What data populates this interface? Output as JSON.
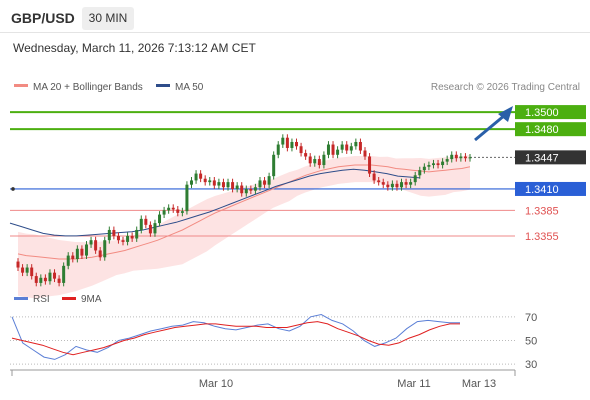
{
  "header": {
    "pair": "GBP/USD",
    "timeframe": "30 MIN",
    "datetime": "Wednesday, March 11, 2026 7:13:12 AM CET"
  },
  "legend": {
    "ma20_label": "MA 20 + Bollinger Bands",
    "ma50_label": "MA 50",
    "credit": "Research © 2026 Trading Central"
  },
  "colors": {
    "up_candle": "#2e7d32",
    "down_candle": "#c62828",
    "resistance_line": "#4caf10",
    "support_line": "#2a5fd6",
    "minor_support_line": "#ef8a8a",
    "ma20": "#f28b82",
    "bollinger_fill": "#fde3e3",
    "ma50": "#2e4d8a",
    "current_price_label": "#333333",
    "rsi_line": "#5b7fd6",
    "rsi_ma_line": "#e02020",
    "arrow": "#2a5fa8"
  },
  "chart_data": [
    {
      "type": "candlestick",
      "instrument": "GBP/USD",
      "timeframe": "30 MIN",
      "ylim": [
        1.328,
        1.352
      ],
      "x_ticks": [
        "Mar 10",
        "Mar 11",
        "Mar 13"
      ],
      "overlays": [
        "MA 20 + Bollinger Bands",
        "MA 50"
      ],
      "levels": [
        {
          "value": 1.35,
          "label": "1.3500",
          "kind": "resistance"
        },
        {
          "value": 1.348,
          "label": "1.3480",
          "kind": "resistance"
        },
        {
          "value": 1.3447,
          "label": "1.3447",
          "kind": "current"
        },
        {
          "value": 1.341,
          "label": "1.3410",
          "kind": "support"
        },
        {
          "value": 1.3385,
          "label": "1.3385",
          "kind": "minor_support"
        },
        {
          "value": 1.3355,
          "label": "1.3355",
          "kind": "minor_support"
        }
      ],
      "series": [
        {
          "name": "price",
          "points": [
            [
              1.3325,
              1.3318
            ],
            [
              1.3318,
              1.3312
            ],
            [
              1.3312,
              1.3318
            ],
            [
              1.3318,
              1.3308
            ],
            [
              1.3308,
              1.33
            ],
            [
              1.33,
              1.3306
            ],
            [
              1.3306,
              1.3302
            ],
            [
              1.3302,
              1.3312
            ],
            [
              1.3312,
              1.3305
            ],
            [
              1.3305,
              1.33
            ],
            [
              1.33,
              1.332
            ],
            [
              1.332,
              1.3332
            ],
            [
              1.3332,
              1.3328
            ],
            [
              1.3328,
              1.334
            ],
            [
              1.334,
              1.3332
            ],
            [
              1.3332,
              1.3345
            ],
            [
              1.3345,
              1.335
            ],
            [
              1.335,
              1.3338
            ],
            [
              1.3338,
              1.333
            ],
            [
              1.333,
              1.335
            ],
            [
              1.335,
              1.3362
            ],
            [
              1.3362,
              1.3355
            ],
            [
              1.3355,
              1.335
            ],
            [
              1.335,
              1.3348
            ],
            [
              1.3348,
              1.3355
            ],
            [
              1.3355,
              1.3352
            ],
            [
              1.3352,
              1.3362
            ],
            [
              1.3362,
              1.3375
            ],
            [
              1.3375,
              1.3368
            ],
            [
              1.3368,
              1.3358
            ],
            [
              1.3358,
              1.337
            ],
            [
              1.337,
              1.338
            ],
            [
              1.338,
              1.3385
            ],
            [
              1.3385,
              1.3388
            ],
            [
              1.3388,
              1.3386
            ],
            [
              1.3386,
              1.3382
            ],
            [
              1.3382,
              1.3384
            ],
            [
              1.3384,
              1.3415
            ],
            [
              1.3415,
              1.342
            ],
            [
              1.342,
              1.3428
            ],
            [
              1.3428,
              1.3422
            ],
            [
              1.3422,
              1.3418
            ],
            [
              1.3418,
              1.342
            ],
            [
              1.342,
              1.3414
            ],
            [
              1.3414,
              1.3418
            ],
            [
              1.3418,
              1.3412
            ],
            [
              1.3412,
              1.3418
            ],
            [
              1.3418,
              1.341
            ],
            [
              1.341,
              1.3414
            ],
            [
              1.3414,
              1.3405
            ],
            [
              1.3405,
              1.341
            ],
            [
              1.341,
              1.3408
            ],
            [
              1.3408,
              1.3412
            ],
            [
              1.3412,
              1.342
            ],
            [
              1.342,
              1.3415
            ],
            [
              1.3415,
              1.3425
            ],
            [
              1.3425,
              1.345
            ],
            [
              1.345,
              1.3462
            ],
            [
              1.3462,
              1.347
            ],
            [
              1.347,
              1.3458
            ],
            [
              1.3458,
              1.3465
            ],
            [
              1.3465,
              1.346
            ],
            [
              1.346,
              1.3452
            ],
            [
              1.3452,
              1.3448
            ],
            [
              1.3448,
              1.344
            ],
            [
              1.344,
              1.3445
            ],
            [
              1.3445,
              1.3438
            ],
            [
              1.3438,
              1.345
            ],
            [
              1.345,
              1.3462
            ],
            [
              1.3462,
              1.345
            ],
            [
              1.345,
              1.3456
            ],
            [
              1.3456,
              1.3462
            ],
            [
              1.3462,
              1.3455
            ],
            [
              1.3455,
              1.346
            ],
            [
              1.346,
              1.3465
            ],
            [
              1.3465,
              1.3455
            ],
            [
              1.3455,
              1.3448
            ],
            [
              1.3448,
              1.3428
            ],
            [
              1.3428,
              1.342
            ],
            [
              1.342,
              1.3418
            ],
            [
              1.3418,
              1.3415
            ],
            [
              1.3415,
              1.3412
            ],
            [
              1.3412,
              1.3416
            ],
            [
              1.3416,
              1.3412
            ],
            [
              1.3412,
              1.3418
            ],
            [
              1.3418,
              1.3415
            ],
            [
              1.3415,
              1.3418
            ],
            [
              1.3418,
              1.3426
            ],
            [
              1.3426,
              1.3432
            ],
            [
              1.3432,
              1.3436
            ],
            [
              1.3436,
              1.3438
            ],
            [
              1.3438,
              1.344
            ],
            [
              1.344,
              1.3438
            ],
            [
              1.3438,
              1.3442
            ],
            [
              1.3442,
              1.3445
            ],
            [
              1.3445,
              1.345
            ],
            [
              1.345,
              1.3446
            ],
            [
              1.3446,
              1.3448
            ],
            [
              1.3448,
              1.3446
            ],
            [
              1.3446,
              1.3447
            ]
          ]
        },
        {
          "name": "MA 20",
          "values": [
            1.3334,
            1.3332,
            1.3331,
            1.333,
            1.3329,
            1.3328,
            1.3328,
            1.3328,
            1.3329,
            1.333,
            1.3332,
            1.3334,
            1.3336,
            1.3338,
            1.3341,
            1.3344,
            1.3347,
            1.335,
            1.3354,
            1.3358,
            1.3362,
            1.3367,
            1.3372,
            1.3377,
            1.3382,
            1.3386,
            1.339,
            1.3394,
            1.3398,
            1.3402,
            1.3406,
            1.341,
            1.3414,
            1.3418,
            1.3422,
            1.3426,
            1.3429,
            1.3432,
            1.3434,
            1.3436,
            1.3437,
            1.3438,
            1.3438,
            1.3438,
            1.3437,
            1.3436,
            1.3434,
            1.3433,
            1.3432,
            1.3431,
            1.343,
            1.3431,
            1.3432,
            1.3433,
            1.3434,
            1.3436
          ]
        },
        {
          "name": "MA 50",
          "values": [
            1.337,
            1.3366,
            1.3362,
            1.3358,
            1.3356,
            1.3355,
            1.3355,
            1.3356,
            1.3357,
            1.3358,
            1.3359,
            1.336,
            1.3362,
            1.3365,
            1.3368,
            1.3371,
            1.3375,
            1.3379,
            1.3383,
            1.3388,
            1.3393,
            1.3398,
            1.3403,
            1.3408,
            1.3413,
            1.3417,
            1.3421,
            1.3425,
            1.3428,
            1.343,
            1.3432,
            1.3433,
            1.3432,
            1.343,
            1.3428,
            1.3425,
            1.3424,
            1.3423
          ]
        }
      ]
    },
    {
      "type": "line",
      "name": "RSI panel",
      "ylim": [
        20,
        80
      ],
      "y_ticks": [
        30,
        50,
        70
      ],
      "series": [
        {
          "name": "RSI",
          "values": [
            70,
            48,
            42,
            36,
            34,
            38,
            45,
            42,
            40,
            44,
            50,
            52,
            55,
            58,
            60,
            62,
            63,
            66,
            65,
            62,
            60,
            59,
            61,
            63,
            64,
            60,
            58,
            62,
            70,
            72,
            67,
            64,
            58,
            50,
            45,
            48,
            52,
            60,
            66,
            67,
            66,
            65,
            65
          ]
        },
        {
          "name": "9MA",
          "values": [
            52,
            50,
            48,
            46,
            43,
            40,
            38,
            40,
            42,
            44,
            47,
            50,
            52,
            55,
            57,
            59,
            61,
            62,
            63,
            64,
            64,
            63,
            62,
            62,
            62,
            61,
            61,
            61,
            63,
            65,
            66,
            64,
            60,
            57,
            54,
            50,
            47,
            46,
            48,
            52,
            55,
            59,
            62,
            64,
            64
          ]
        }
      ]
    }
  ]
}
